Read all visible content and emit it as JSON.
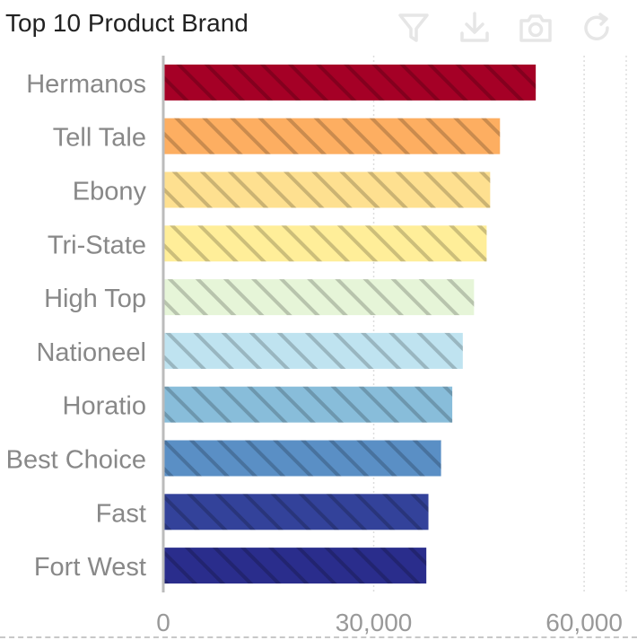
{
  "panel": {
    "title": "Top 10 Product Brand"
  },
  "toolbar": {
    "icons": [
      "filter-icon",
      "download-icon",
      "camera-icon",
      "refresh-icon"
    ],
    "icon_color": "#e6e6e6"
  },
  "chart_data": {
    "type": "bar",
    "orientation": "horizontal",
    "categories": [
      "Hermanos",
      "Tell Tale",
      "Ebony",
      "Tri-State",
      "High Top",
      "Nationeel",
      "Horatio",
      "Best Choice",
      "Fast",
      "Fort West"
    ],
    "values": [
      53100,
      48000,
      46600,
      46100,
      44300,
      42700,
      41200,
      39600,
      37800,
      37500
    ],
    "colors": [
      "#a50026",
      "#fdae61",
      "#fee090",
      "#ffee99",
      "#e6f5d8",
      "#bfe3f0",
      "#88bdda",
      "#5a8fc5",
      "#33429a",
      "#2a2d8c"
    ],
    "pattern": "diagonal-hatch",
    "xlim": [
      0,
      66000
    ],
    "xticks": [
      0,
      30000,
      60000
    ],
    "xtick_labels": [
      "0",
      "30,000",
      "60,000"
    ],
    "grid": true
  }
}
